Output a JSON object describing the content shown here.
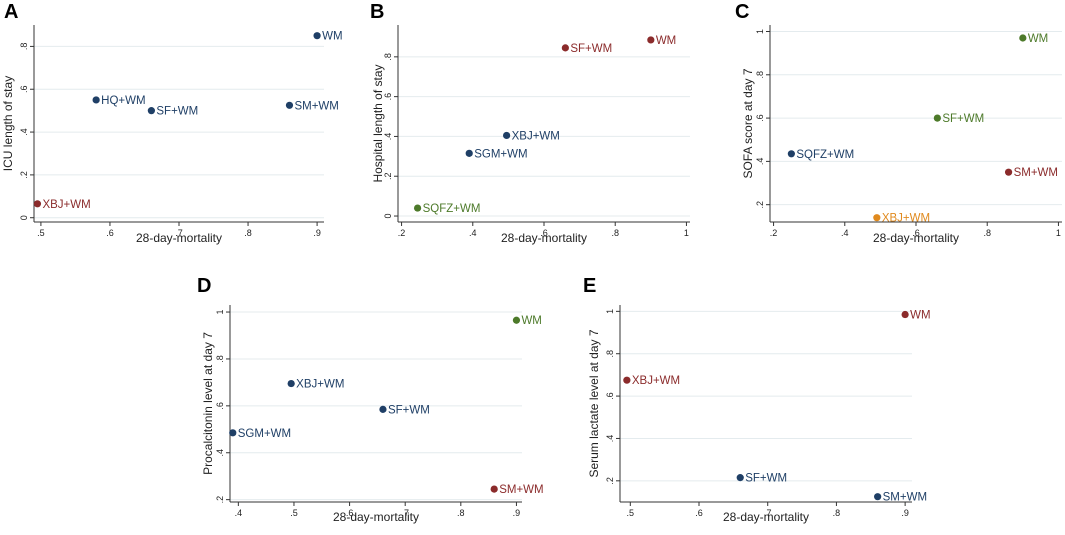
{
  "colors": {
    "blue": "#1f3f66",
    "red": "#8b2b2b",
    "green": "#4d7a2a",
    "orange": "#e08a1e"
  },
  "chart_data": [
    {
      "panel": "A",
      "type": "scatter",
      "xlabel": "28-day-mortality",
      "ylabel": "ICU length of stay",
      "xlim": [
        0.49,
        0.91
      ],
      "ylim": [
        -0.02,
        0.9
      ],
      "xticks": [
        {
          "v": 0.5,
          "label": ".5"
        },
        {
          "v": 0.6,
          "label": ".6"
        },
        {
          "v": 0.7,
          "label": ".7"
        },
        {
          "v": 0.8,
          "label": ".8"
        },
        {
          "v": 0.9,
          "label": ".9"
        }
      ],
      "yticks": [
        {
          "v": 0,
          "label": "0"
        },
        {
          "v": 0.2,
          "label": ".2"
        },
        {
          "v": 0.4,
          "label": ".4"
        },
        {
          "v": 0.6,
          "label": ".6"
        },
        {
          "v": 0.8,
          "label": ".8"
        }
      ],
      "points": [
        {
          "label": "WM",
          "x": 0.9,
          "y": 0.85,
          "color": "blue"
        },
        {
          "label": "HQ+WM",
          "x": 0.58,
          "y": 0.55,
          "color": "blue"
        },
        {
          "label": "SF+WM",
          "x": 0.66,
          "y": 0.5,
          "color": "blue"
        },
        {
          "label": "SM+WM",
          "x": 0.86,
          "y": 0.525,
          "color": "blue"
        },
        {
          "label": "XBJ+WM",
          "x": 0.495,
          "y": 0.065,
          "color": "red"
        }
      ]
    },
    {
      "panel": "B",
      "type": "scatter",
      "xlabel": "28-day-mortality",
      "ylabel": "Hospital length of stay",
      "xlim": [
        0.19,
        1.01
      ],
      "ylim": [
        -0.03,
        0.96
      ],
      "xticks": [
        {
          "v": 0.2,
          "label": ".2"
        },
        {
          "v": 0.4,
          "label": ".4"
        },
        {
          "v": 0.6,
          "label": ".6"
        },
        {
          "v": 0.8,
          "label": ".8"
        },
        {
          "v": 1.0,
          "label": "1"
        }
      ],
      "yticks": [
        {
          "v": 0,
          "label": "0"
        },
        {
          "v": 0.2,
          "label": ".2"
        },
        {
          "v": 0.4,
          "label": ".4"
        },
        {
          "v": 0.6,
          "label": ".6"
        },
        {
          "v": 0.8,
          "label": ".8"
        }
      ],
      "points": [
        {
          "label": "WM",
          "x": 0.9,
          "y": 0.885,
          "color": "red"
        },
        {
          "label": "SF+WM",
          "x": 0.66,
          "y": 0.845,
          "color": "red"
        },
        {
          "label": "XBJ+WM",
          "x": 0.495,
          "y": 0.405,
          "color": "blue"
        },
        {
          "label": "SGM+WM",
          "x": 0.39,
          "y": 0.315,
          "color": "blue"
        },
        {
          "label": "SQFZ+WM",
          "x": 0.245,
          "y": 0.04,
          "color": "green"
        }
      ]
    },
    {
      "panel": "C",
      "type": "scatter",
      "xlabel": "28-day-mortality",
      "ylabel": "SOFA score at day 7",
      "xlim": [
        0.19,
        1.01
      ],
      "ylim": [
        0.12,
        1.03
      ],
      "xticks": [
        {
          "v": 0.2,
          "label": ".2"
        },
        {
          "v": 0.4,
          "label": ".4"
        },
        {
          "v": 0.6,
          "label": ".6"
        },
        {
          "v": 0.8,
          "label": ".8"
        },
        {
          "v": 1.0,
          "label": "1"
        }
      ],
      "yticks": [
        {
          "v": 0.2,
          "label": ".2"
        },
        {
          "v": 0.4,
          "label": ".4"
        },
        {
          "v": 0.6,
          "label": ".6"
        },
        {
          "v": 0.8,
          "label": ".8"
        },
        {
          "v": 1.0,
          "label": "1"
        }
      ],
      "points": [
        {
          "label": "WM",
          "x": 0.9,
          "y": 0.97,
          "color": "green"
        },
        {
          "label": "SF+WM",
          "x": 0.66,
          "y": 0.6,
          "color": "green"
        },
        {
          "label": "SQFZ+WM",
          "x": 0.25,
          "y": 0.435,
          "color": "blue"
        },
        {
          "label": "SM+WM",
          "x": 0.86,
          "y": 0.35,
          "color": "red"
        },
        {
          "label": "XBJ+WM",
          "x": 0.49,
          "y": 0.14,
          "color": "orange"
        }
      ]
    },
    {
      "panel": "D",
      "type": "scatter",
      "xlabel": "28-day-mortality",
      "ylabel": "Procalcitonin level at day 7",
      "xlim": [
        0.385,
        0.91
      ],
      "ylim": [
        0.19,
        1.03
      ],
      "xticks": [
        {
          "v": 0.4,
          "label": ".4"
        },
        {
          "v": 0.5,
          "label": ".5"
        },
        {
          "v": 0.6,
          "label": ".6"
        },
        {
          "v": 0.7,
          "label": ".7"
        },
        {
          "v": 0.8,
          "label": ".8"
        },
        {
          "v": 0.9,
          "label": ".9"
        }
      ],
      "yticks": [
        {
          "v": 0.2,
          "label": ".2"
        },
        {
          "v": 0.4,
          "label": ".4"
        },
        {
          "v": 0.6,
          "label": ".6"
        },
        {
          "v": 0.8,
          "label": ".8"
        },
        {
          "v": 1.0,
          "label": "1"
        }
      ],
      "points": [
        {
          "label": "WM",
          "x": 0.9,
          "y": 0.965,
          "color": "green"
        },
        {
          "label": "XBJ+WM",
          "x": 0.495,
          "y": 0.695,
          "color": "blue"
        },
        {
          "label": "SF+WM",
          "x": 0.66,
          "y": 0.585,
          "color": "blue"
        },
        {
          "label": "SGM+WM",
          "x": 0.39,
          "y": 0.485,
          "color": "blue"
        },
        {
          "label": "SM+WM",
          "x": 0.86,
          "y": 0.245,
          "color": "red"
        }
      ]
    },
    {
      "panel": "E",
      "type": "scatter",
      "xlabel": "28-day-mortality",
      "ylabel": "Serum lactate level at day 7",
      "xlim": [
        0.485,
        0.91
      ],
      "ylim": [
        0.1,
        1.03
      ],
      "xticks": [
        {
          "v": 0.5,
          "label": ".5"
        },
        {
          "v": 0.6,
          "label": ".6"
        },
        {
          "v": 0.7,
          "label": ".7"
        },
        {
          "v": 0.8,
          "label": ".8"
        },
        {
          "v": 0.9,
          "label": ".9"
        }
      ],
      "yticks": [
        {
          "v": 0.2,
          "label": ".2"
        },
        {
          "v": 0.4,
          "label": ".4"
        },
        {
          "v": 0.6,
          "label": ".6"
        },
        {
          "v": 0.8,
          "label": ".8"
        },
        {
          "v": 1.0,
          "label": "1"
        }
      ],
      "points": [
        {
          "label": "WM",
          "x": 0.9,
          "y": 0.985,
          "color": "red"
        },
        {
          "label": "XBJ+WM",
          "x": 0.495,
          "y": 0.675,
          "color": "red"
        },
        {
          "label": "SF+WM",
          "x": 0.66,
          "y": 0.215,
          "color": "blue"
        },
        {
          "label": "SM+WM",
          "x": 0.86,
          "y": 0.125,
          "color": "blue"
        }
      ]
    }
  ]
}
